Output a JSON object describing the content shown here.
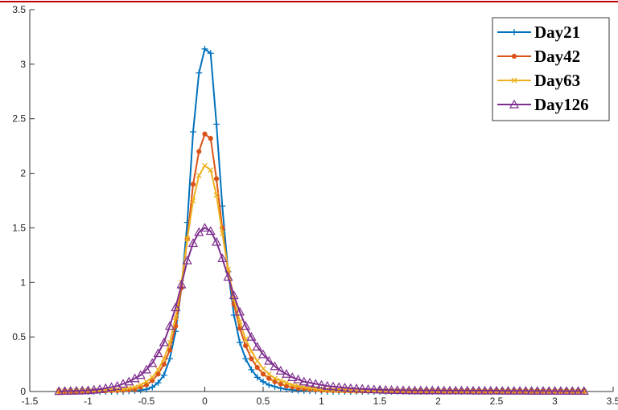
{
  "chart_data": {
    "type": "line",
    "x": [
      -1.25,
      -1.2,
      -1.15,
      -1.1,
      -1.05,
      -1.0,
      -0.95,
      -0.9,
      -0.85,
      -0.8,
      -0.75,
      -0.7,
      -0.65,
      -0.6,
      -0.55,
      -0.5,
      -0.45,
      -0.4,
      -0.35,
      -0.3,
      -0.25,
      -0.2,
      -0.15,
      -0.1,
      -0.05,
      0,
      0.05,
      0.1,
      0.15,
      0.2,
      0.25,
      0.3,
      0.35,
      0.4,
      0.45,
      0.5,
      0.55,
      0.6,
      0.65,
      0.7,
      0.75,
      0.8,
      0.85,
      0.9,
      0.95,
      1.0,
      1.05,
      1.1,
      1.15,
      1.2,
      1.25,
      1.3,
      1.35,
      1.4,
      1.45,
      1.5,
      1.55,
      1.6,
      1.65,
      1.7,
      1.75,
      1.8,
      1.85,
      1.9,
      1.95,
      2.0,
      2.05,
      2.1,
      2.15,
      2.2,
      2.25,
      2.3,
      2.35,
      2.4,
      2.45,
      2.5,
      2.55,
      2.6,
      2.65,
      2.7,
      2.75,
      2.8,
      2.85,
      2.9,
      2.95,
      3.0,
      3.05,
      3.1,
      3.15,
      3.2,
      3.25
    ],
    "series": [
      {
        "name": "Day21",
        "color": "#0072bd",
        "marker": "plus",
        "values": [
          0,
          0,
          0,
          0,
          0,
          0,
          0,
          0,
          0,
          0,
          0,
          0,
          0.005,
          0.008,
          0.012,
          0.02,
          0.04,
          0.08,
          0.15,
          0.3,
          0.55,
          0.95,
          1.55,
          2.38,
          2.92,
          3.14,
          3.1,
          2.45,
          1.7,
          1.1,
          0.7,
          0.45,
          0.3,
          0.2,
          0.13,
          0.09,
          0.06,
          0.045,
          0.03,
          0.02,
          0.015,
          0.01,
          0.008,
          0.006,
          0.005,
          0.004,
          0,
          0,
          0,
          0,
          0,
          0,
          0,
          0,
          0,
          0,
          0,
          0,
          0,
          0,
          0,
          0,
          0,
          0,
          0,
          0,
          0,
          0,
          0,
          0,
          0,
          0,
          0,
          0,
          0,
          0,
          0,
          0,
          0,
          0,
          0,
          0,
          0,
          0,
          0,
          0,
          0,
          0,
          0,
          0,
          0
        ]
      },
      {
        "name": "Day42",
        "color": "#d95319",
        "marker": "asterisk",
        "values": [
          0,
          0,
          0,
          0,
          0.002,
          0.003,
          0.004,
          0.005,
          0.006,
          0.007,
          0.008,
          0.01,
          0.015,
          0.02,
          0.04,
          0.06,
          0.1,
          0.16,
          0.25,
          0.38,
          0.6,
          0.95,
          1.4,
          1.9,
          2.2,
          2.36,
          2.32,
          1.95,
          1.5,
          1.1,
          0.8,
          0.58,
          0.42,
          0.3,
          0.22,
          0.16,
          0.12,
          0.09,
          0.07,
          0.05,
          0.04,
          0.03,
          0.025,
          0.02,
          0.015,
          0.01,
          0.009,
          0.008,
          0.007,
          0.006,
          0.005,
          0.004,
          0.004,
          0.004,
          0.004,
          0.004,
          0.004,
          0.004,
          0.004,
          0.004,
          0.004,
          0.003,
          0.003,
          0.003,
          0.003,
          0.003,
          0.003,
          0.003,
          0.003,
          0.003,
          0.003,
          0.002,
          0.002,
          0.002,
          0.002,
          0.002,
          0.002,
          0.002,
          0.002,
          0.002,
          0.002,
          0.001,
          0.001,
          0.001,
          0.001,
          0.001,
          0.001,
          0.001,
          0.001,
          0.001,
          0.001
        ]
      },
      {
        "name": "Day63",
        "color": "#edb120",
        "marker": "cross",
        "values": [
          0.002,
          0.003,
          0.004,
          0.005,
          0.006,
          0.007,
          0.008,
          0.01,
          0.012,
          0.015,
          0.018,
          0.02,
          0.03,
          0.04,
          0.06,
          0.09,
          0.13,
          0.2,
          0.3,
          0.45,
          0.68,
          1.0,
          1.4,
          1.75,
          1.98,
          2.07,
          2.03,
          1.8,
          1.45,
          1.12,
          0.85,
          0.64,
          0.48,
          0.37,
          0.28,
          0.21,
          0.16,
          0.12,
          0.1,
          0.08,
          0.06,
          0.05,
          0.04,
          0.03,
          0.025,
          0.02,
          0.015,
          0.012,
          0.01,
          0.009,
          0.008,
          0.007,
          0.007,
          0.006,
          0.006,
          0.005,
          0.005,
          0.005,
          0.004,
          0.004,
          0.004,
          0.003,
          0.003,
          0.003,
          0.003,
          0.003,
          0.003,
          0.003,
          0.003,
          0.003,
          0.003,
          0.002,
          0.002,
          0.002,
          0.002,
          0.002,
          0.002,
          0.002,
          0.002,
          0.002,
          0.002,
          0.001,
          0.001,
          0.001,
          0.001,
          0.001,
          0.001,
          0.001,
          0.001,
          0.001,
          0.001
        ]
      },
      {
        "name": "Day126",
        "color": "#7e2f8e",
        "marker": "triangle",
        "values": [
          0.003,
          0.004,
          0.005,
          0.006,
          0.008,
          0.01,
          0.015,
          0.02,
          0.03,
          0.04,
          0.05,
          0.07,
          0.09,
          0.12,
          0.15,
          0.2,
          0.26,
          0.35,
          0.45,
          0.6,
          0.77,
          0.98,
          1.2,
          1.36,
          1.46,
          1.5,
          1.47,
          1.37,
          1.22,
          1.05,
          0.88,
          0.73,
          0.6,
          0.5,
          0.41,
          0.34,
          0.28,
          0.23,
          0.19,
          0.16,
          0.13,
          0.11,
          0.09,
          0.08,
          0.07,
          0.06,
          0.05,
          0.045,
          0.04,
          0.035,
          0.03,
          0.027,
          0.024,
          0.02,
          0.018,
          0.016,
          0.014,
          0.013,
          0.012,
          0.011,
          0.01,
          0.009,
          0.009,
          0.009,
          0.009,
          0.009,
          0.008,
          0.008,
          0.008,
          0.008,
          0.008,
          0.007,
          0.007,
          0.007,
          0.007,
          0.007,
          0.006,
          0.006,
          0.006,
          0.006,
          0.006,
          0.005,
          0.005,
          0.005,
          0.005,
          0.005,
          0.004,
          0.004,
          0.004,
          0.004,
          0.004
        ]
      }
    ],
    "xlim": [
      -1.5,
      3.5
    ],
    "xticks": [
      -1.5,
      -1,
      -0.5,
      0,
      0.5,
      1,
      1.5,
      2,
      2.5,
      3,
      3.5
    ],
    "ylim": [
      0,
      3.5
    ],
    "yticks": [
      0,
      0.5,
      1,
      1.5,
      2,
      2.5,
      3,
      3.5
    ],
    "legend": "upper right"
  }
}
